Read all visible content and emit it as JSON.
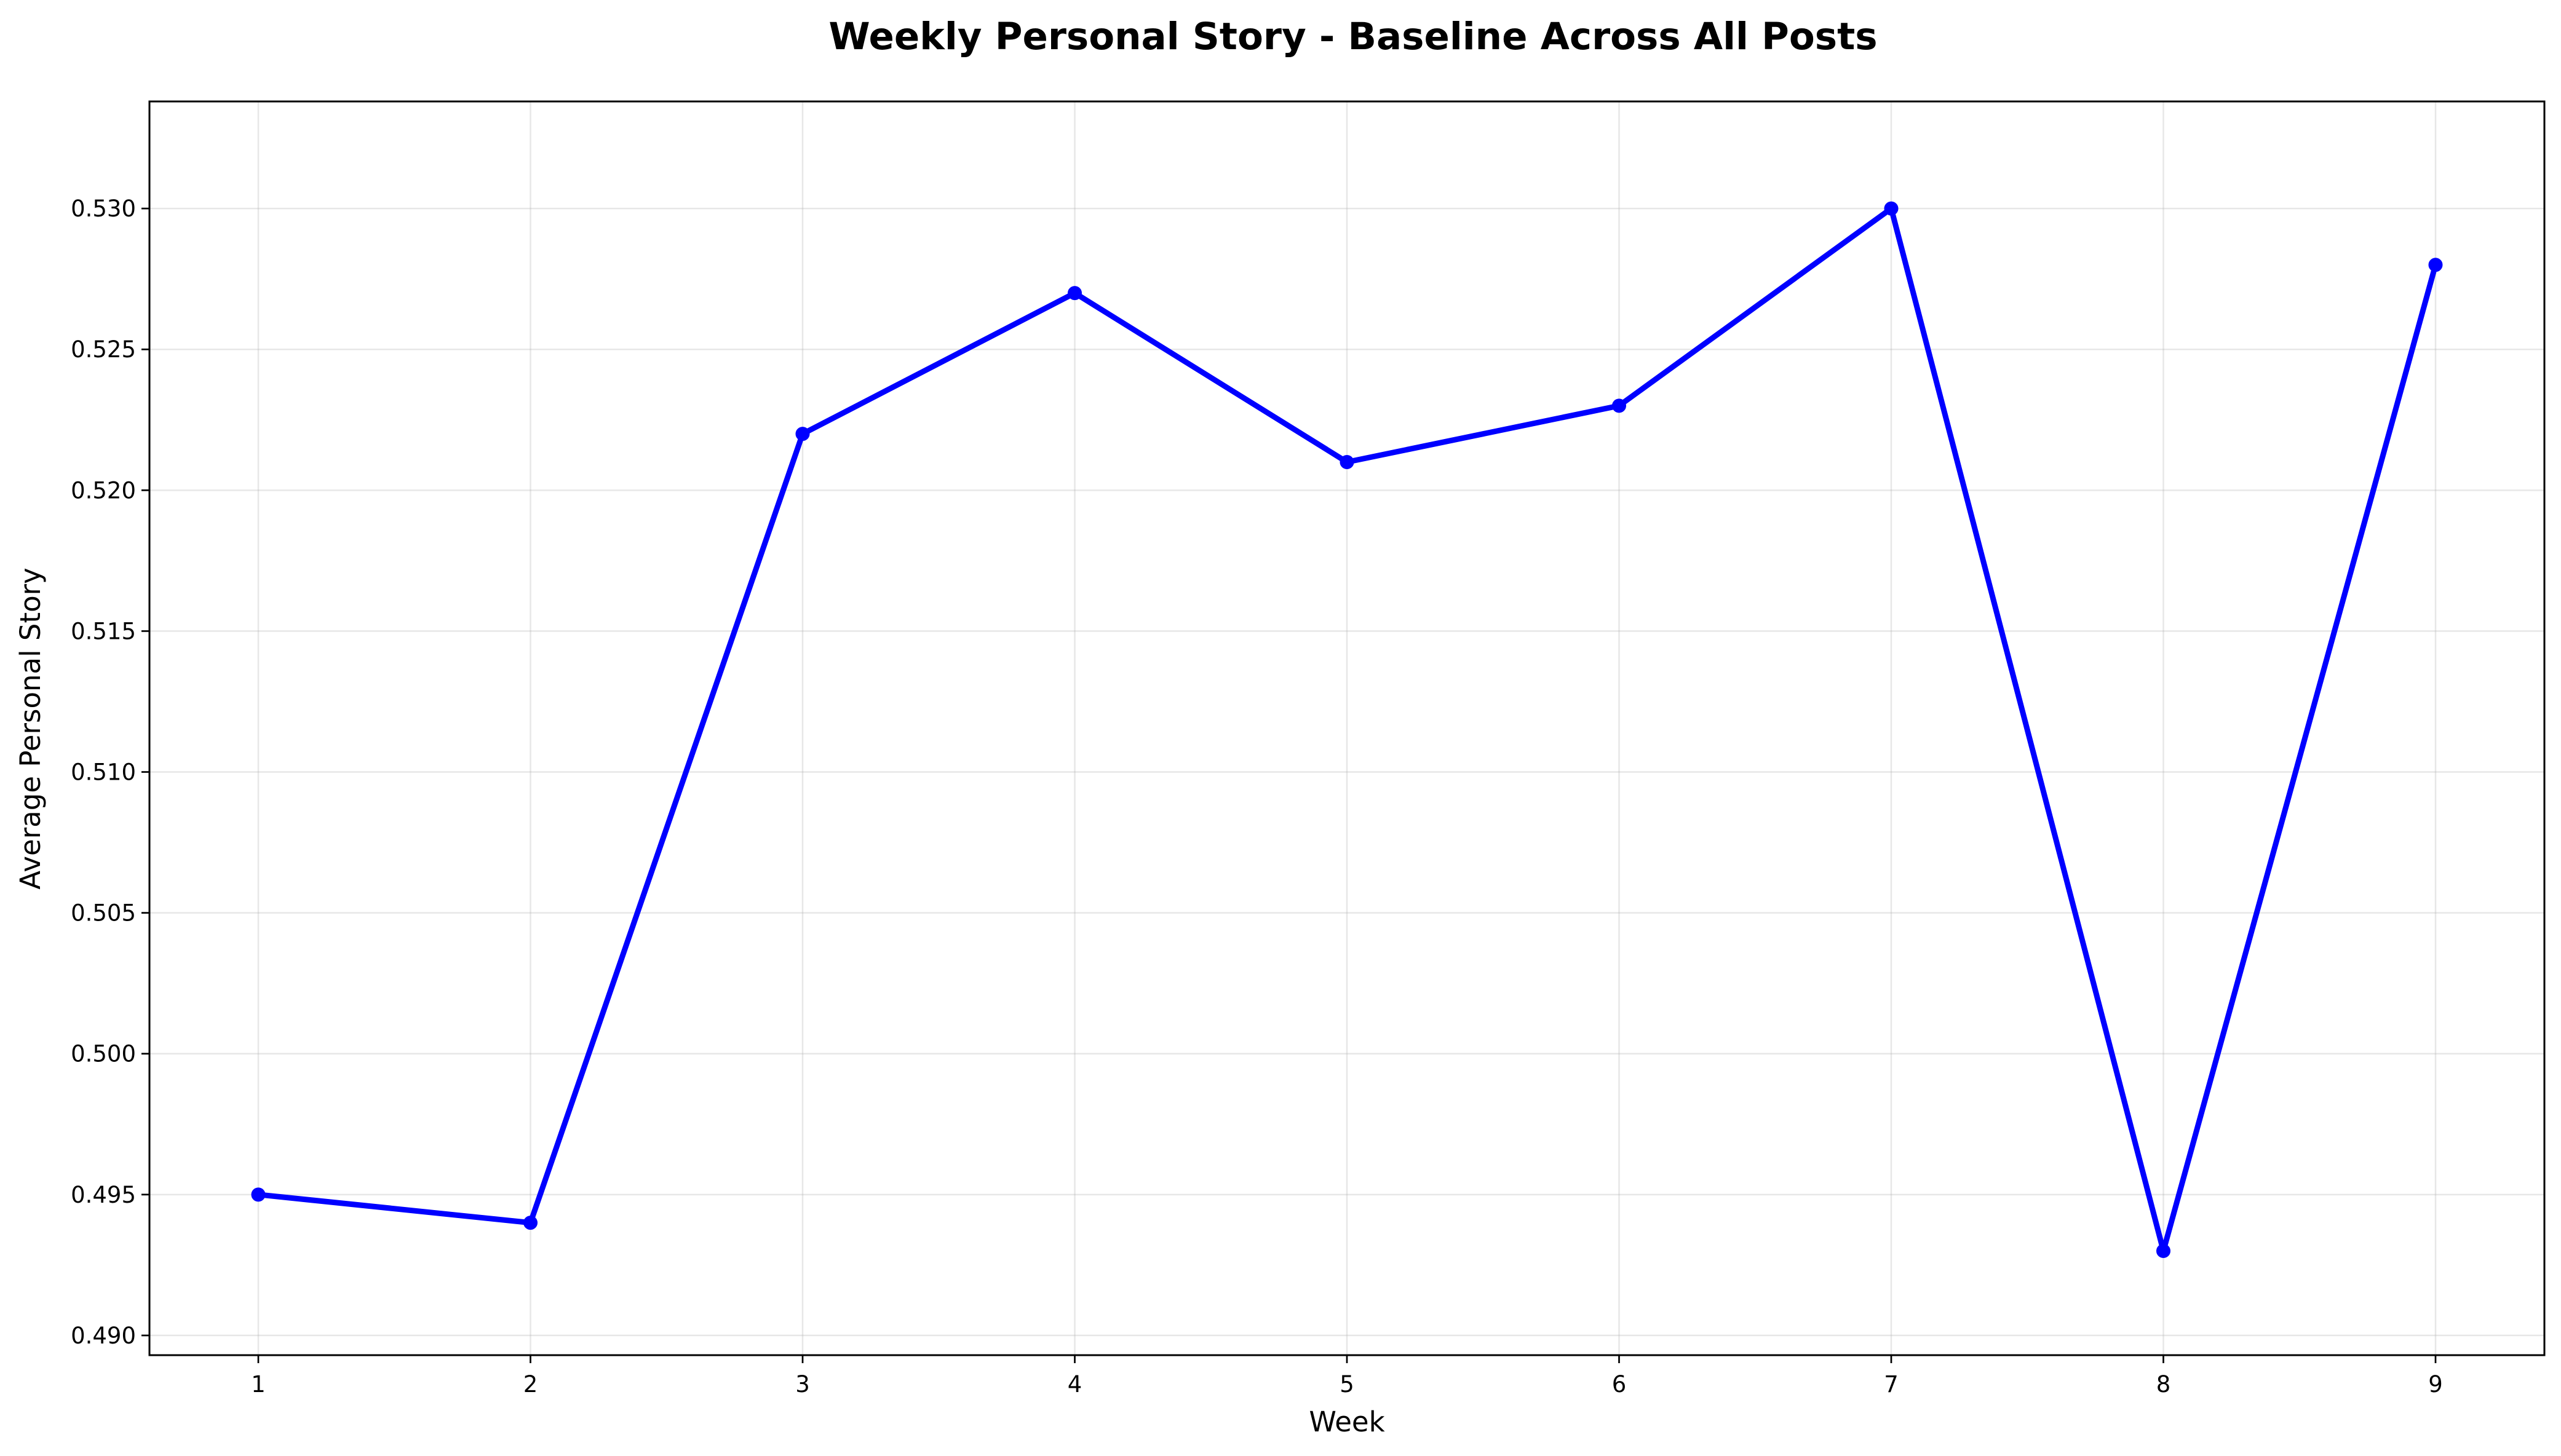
{
  "chart_data": {
    "type": "line",
    "title": "Weekly Personal Story - Baseline Across All Posts",
    "xlabel": "Week",
    "ylabel": "Average Personal Story",
    "x": [
      1,
      2,
      3,
      4,
      5,
      6,
      7,
      8,
      9
    ],
    "series": [
      {
        "values": [
          0.495,
          0.494,
          0.522,
          0.527,
          0.521,
          0.523,
          0.53,
          0.493,
          0.528
        ],
        "color": "#0000ff",
        "marker": "circle"
      }
    ],
    "xlim": [
      0.6,
      9.4
    ],
    "ylim": [
      0.4893,
      0.5338
    ],
    "xticks": [
      1,
      2,
      3,
      4,
      5,
      6,
      7,
      8,
      9
    ],
    "yticks": [
      0.49,
      0.495,
      0.5,
      0.505,
      0.51,
      0.515,
      0.52,
      0.525,
      0.53
    ],
    "ytick_labels": [
      "0.490",
      "0.495",
      "0.500",
      "0.505",
      "0.510",
      "0.515",
      "0.520",
      "0.525",
      "0.530"
    ],
    "grid": true,
    "legend": "none"
  }
}
